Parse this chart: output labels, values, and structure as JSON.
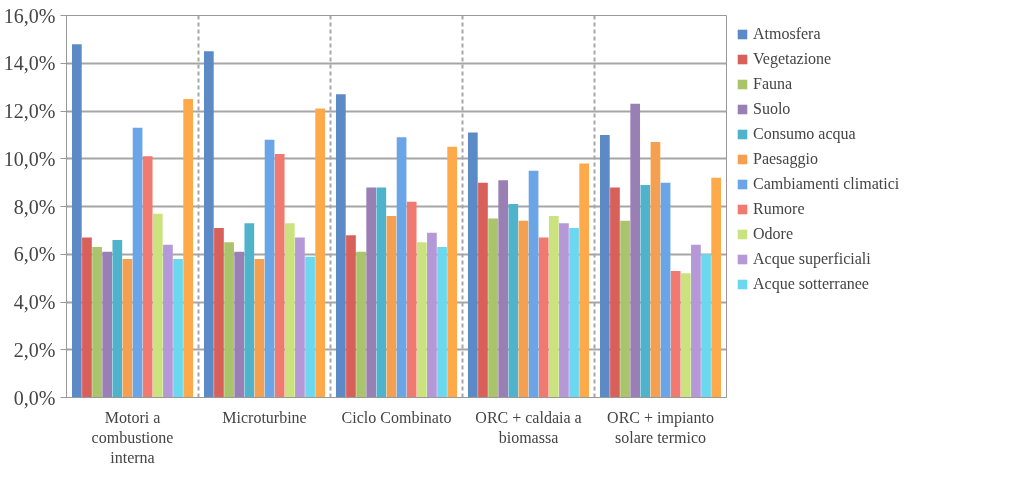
{
  "chart_data": {
    "type": "bar",
    "categories": [
      "Motori a combustione interna",
      "Microturbine",
      "Ciclo Combinato",
      "ORC + caldaia a biomassa",
      "ORC + impianto solare termico"
    ],
    "series": [
      {
        "name": "Atmosfera",
        "color": "#5b8ac6",
        "values": [
          14.8,
          14.5,
          12.7,
          11.1,
          11.0
        ]
      },
      {
        "name": "Vegetazione",
        "color": "#d9605a",
        "values": [
          6.7,
          7.1,
          6.8,
          9.0,
          8.8
        ]
      },
      {
        "name": "Fauna",
        "color": "#a9c46a",
        "values": [
          6.3,
          6.5,
          6.1,
          7.5,
          7.4
        ]
      },
      {
        "name": "Suolo",
        "color": "#9a7fb5",
        "values": [
          6.1,
          6.1,
          8.8,
          9.1,
          12.3
        ]
      },
      {
        "name": "Consumo acqua",
        "color": "#4fb3cc",
        "values": [
          6.6,
          7.3,
          8.8,
          8.1,
          8.9
        ]
      },
      {
        "name": "Paesaggio",
        "color": "#f5a050",
        "values": [
          5.8,
          5.8,
          7.6,
          7.4,
          10.7
        ]
      },
      {
        "name": "Cambiamenti climatici",
        "color": "#6aa5e8",
        "values": [
          11.3,
          10.8,
          10.9,
          9.5,
          9.0
        ]
      },
      {
        "name": "Rumore",
        "color": "#f07a70",
        "values": [
          10.1,
          10.2,
          8.2,
          6.7,
          5.3
        ]
      },
      {
        "name": "Odore",
        "color": "#cbe37e",
        "values": [
          7.7,
          7.3,
          6.5,
          7.6,
          5.2
        ]
      },
      {
        "name": "Acque superficiali",
        "color": "#b598d8",
        "values": [
          6.4,
          6.7,
          6.9,
          7.3,
          6.4
        ]
      },
      {
        "name": "Acque sotterranee",
        "color": "#6cd8ef",
        "values": [
          5.8,
          5.9,
          6.3,
          7.1,
          6.0
        ]
      },
      {
        "color": "#ffaa4a",
        "values": [
          12.5,
          12.1,
          10.5,
          9.8,
          9.2
        ]
      }
    ],
    "ylim": [
      0,
      16
    ],
    "yticks": [
      {
        "value": 0,
        "label": "0,0%"
      },
      {
        "value": 2,
        "label": "2,0%"
      },
      {
        "value": 4,
        "label": "4,0%"
      },
      {
        "value": 6,
        "label": "6,0%"
      },
      {
        "value": 8,
        "label": "8,0%"
      },
      {
        "value": 10,
        "label": "10,0%"
      },
      {
        "value": 12,
        "label": "12,0%"
      },
      {
        "value": 14,
        "label": "14,0%"
      },
      {
        "value": 16,
        "label": "16,0%"
      }
    ],
    "grid": true,
    "legend": "right"
  }
}
